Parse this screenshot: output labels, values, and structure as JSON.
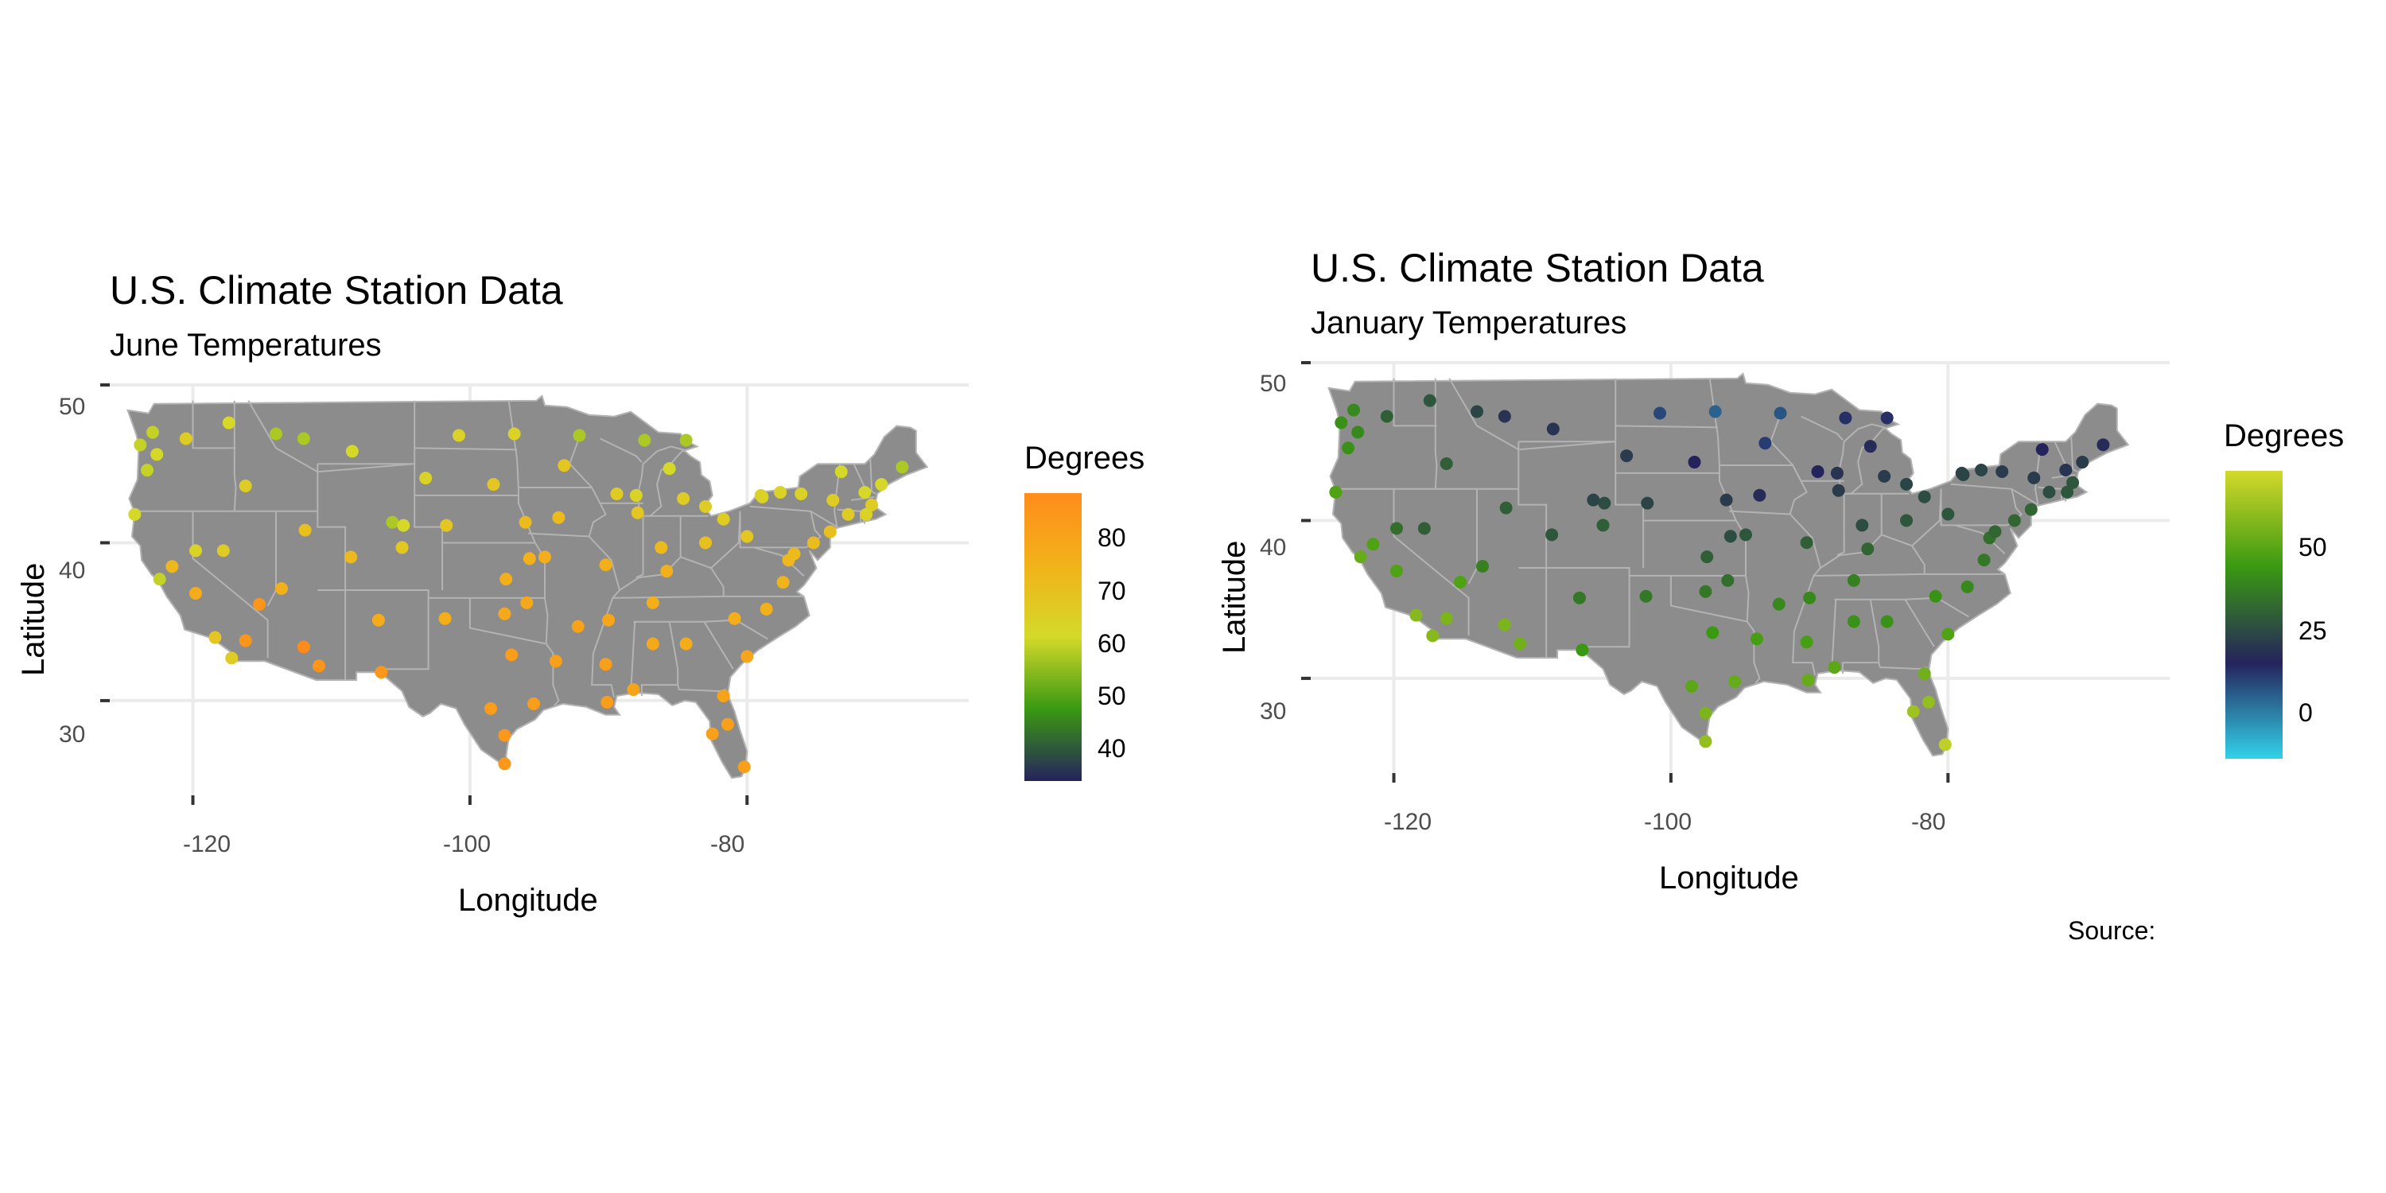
{
  "charts": [
    {
      "id": "june",
      "title": "U.S. Climate Station Data",
      "subtitle": "June Temperatures",
      "xlabel": "Longitude",
      "ylabel": "Latitude",
      "xticks": [
        "-120",
        "-100",
        "-80"
      ],
      "yticks": [
        "50",
        "40",
        "30"
      ],
      "legend": {
        "title": "Degrees",
        "labels": [
          "80",
          "70",
          "60",
          "50",
          "40"
        ]
      }
    },
    {
      "id": "january",
      "title": "U.S. Climate Station Data",
      "subtitle": "January Temperatures",
      "xlabel": "Longitude",
      "ylabel": "Latitude",
      "xticks": [
        "-120",
        "-100",
        "-80"
      ],
      "yticks": [
        "50",
        "40",
        "30"
      ],
      "legend": {
        "title": "Degrees",
        "labels": [
          "50",
          "25",
          "0"
        ]
      }
    }
  ],
  "caption": "Source:",
  "colors": {
    "land": "#8c8c8c",
    "state_borders": "#b3b3b3",
    "grid": "#ebebeb",
    "june_scale": [
      "#25235c",
      "#3a9912",
      "#d4d92a",
      "#f2b21a",
      "#ff8c1a"
    ],
    "january_scale": [
      "#31d2e8",
      "#25235c",
      "#3a9912",
      "#d4d92a"
    ]
  },
  "chart_data": [
    {
      "type": "scatter",
      "title": "U.S. Climate Station Data",
      "subtitle": "June Temperatures",
      "xlabel": "Longitude",
      "ylabel": "Latitude",
      "xlim": [
        -126,
        -64
      ],
      "ylim": [
        24,
        50
      ],
      "color_variable": "Degrees",
      "color_range": [
        35,
        88
      ],
      "grid": true,
      "legend": "right",
      "series": [
        {
          "values": [
            [
              -124.2,
              41.8,
              62
            ],
            [
              -123.8,
              46.2,
              60
            ],
            [
              -122.9,
              47.0,
              60
            ],
            [
              -122.6,
              45.6,
              62
            ],
            [
              -123.3,
              44.6,
              60
            ],
            [
              -122.4,
              37.7,
              60
            ],
            [
              -121.5,
              38.5,
              73
            ],
            [
              -118.4,
              34.0,
              68
            ],
            [
              -117.2,
              32.7,
              66
            ],
            [
              -116.2,
              33.8,
              85
            ],
            [
              -119.8,
              36.8,
              77
            ],
            [
              -115.2,
              36.1,
              85
            ],
            [
              -112.0,
              33.4,
              88
            ],
            [
              -110.9,
              32.2,
              85
            ],
            [
              -106.6,
              35.1,
              77
            ],
            [
              -106.4,
              31.8,
              84
            ],
            [
              -104.9,
              39.7,
              68
            ],
            [
              -105.6,
              41.3,
              58
            ],
            [
              -108.5,
              45.8,
              62
            ],
            [
              -112.0,
              46.6,
              58
            ],
            [
              -114.0,
              46.9,
              58
            ],
            [
              -116.2,
              43.6,
              66
            ],
            [
              -111.9,
              40.8,
              70
            ],
            [
              -117.4,
              47.6,
              62
            ],
            [
              -120.5,
              46.6,
              66
            ],
            [
              -117.8,
              39.5,
              66
            ],
            [
              -119.8,
              39.5,
              64
            ],
            [
              -113.6,
              37.1,
              75
            ],
            [
              -108.6,
              39.1,
              72
            ],
            [
              -104.8,
              41.1,
              62
            ],
            [
              -100.8,
              46.8,
              64
            ],
            [
              -96.8,
              46.9,
              64
            ],
            [
              -98.3,
              43.7,
              68
            ],
            [
              -103.2,
              44.1,
              64
            ],
            [
              -101.7,
              41.1,
              68
            ],
            [
              -96.0,
              41.3,
              72
            ],
            [
              -97.4,
              37.7,
              76
            ],
            [
              -95.7,
              39.0,
              75
            ],
            [
              -97.5,
              35.5,
              78
            ],
            [
              -95.9,
              36.2,
              78
            ],
            [
              -101.8,
              35.2,
              76
            ],
            [
              -97.0,
              32.9,
              82
            ],
            [
              -95.4,
              29.8,
              82
            ],
            [
              -98.5,
              29.5,
              82
            ],
            [
              -97.5,
              27.8,
              84
            ],
            [
              -97.5,
              26.0,
              84
            ],
            [
              -93.2,
              44.9,
              68
            ],
            [
              -92.1,
              46.8,
              58
            ],
            [
              -93.6,
              41.6,
              72
            ],
            [
              -90.2,
              38.6,
              76
            ],
            [
              -94.6,
              39.1,
              76
            ],
            [
              -92.2,
              34.7,
              80
            ],
            [
              -90.1,
              29.9,
              82
            ],
            [
              -93.8,
              32.5,
              81
            ],
            [
              -90.2,
              32.3,
              81
            ],
            [
              -88.0,
              43.0,
              64
            ],
            [
              -89.4,
              43.1,
              66
            ],
            [
              -87.9,
              41.9,
              68
            ],
            [
              -86.2,
              39.7,
              72
            ],
            [
              -85.8,
              38.2,
              75
            ],
            [
              -86.8,
              36.2,
              76
            ],
            [
              -90.0,
              35.1,
              79
            ],
            [
              -86.8,
              33.6,
              78
            ],
            [
              -88.2,
              30.7,
              80
            ],
            [
              -84.4,
              33.6,
              77
            ],
            [
              -83.0,
              40.0,
              70
            ],
            [
              -81.7,
              41.5,
              66
            ],
            [
              -83.0,
              42.3,
              66
            ],
            [
              -84.6,
              42.8,
              66
            ],
            [
              -85.6,
              44.7,
              62
            ],
            [
              -87.4,
              46.5,
              58
            ],
            [
              -84.4,
              46.5,
              58
            ],
            [
              -81.4,
              28.5,
              81
            ],
            [
              -80.2,
              25.8,
              81
            ],
            [
              -82.5,
              27.9,
              81
            ],
            [
              -81.7,
              30.3,
              80
            ],
            [
              -80.0,
              32.8,
              79
            ],
            [
              -80.9,
              35.2,
              76
            ],
            [
              -78.6,
              35.8,
              75
            ],
            [
              -77.4,
              37.5,
              74
            ],
            [
              -77.0,
              38.9,
              73
            ],
            [
              -76.6,
              39.3,
              72
            ],
            [
              -75.2,
              40.0,
              71
            ],
            [
              -74.0,
              40.7,
              70
            ],
            [
              -73.8,
              42.7,
              66
            ],
            [
              -71.0,
              42.4,
              66
            ],
            [
              -72.7,
              41.8,
              66
            ],
            [
              -71.4,
              41.8,
              64
            ],
            [
              -70.3,
              43.7,
              62
            ],
            [
              -68.8,
              44.8,
              58
            ],
            [
              -73.2,
              44.5,
              62
            ],
            [
              -71.5,
              43.2,
              62
            ],
            [
              -78.9,
              42.9,
              64
            ],
            [
              -80.0,
              40.4,
              68
            ],
            [
              -79.0,
              43.0,
              64
            ],
            [
              -76.1,
              43.1,
              64
            ],
            [
              -77.6,
              43.2,
              64
            ]
          ]
        }
      ]
    },
    {
      "type": "scatter",
      "title": "U.S. Climate Station Data",
      "subtitle": "January Temperatures",
      "xlabel": "Longitude",
      "ylabel": "Latitude",
      "xlim": [
        -126,
        -64
      ],
      "ylim": [
        24,
        50
      ],
      "color_variable": "Degrees",
      "color_range": [
        -12,
        72
      ],
      "grid": true,
      "legend": "right",
      "series": [
        {
          "values": [
            [
              -124.2,
              41.8,
              48
            ],
            [
              -123.8,
              46.2,
              42
            ],
            [
              -122.9,
              47.0,
              40
            ],
            [
              -122.6,
              45.6,
              40
            ],
            [
              -123.3,
              44.6,
              42
            ],
            [
              -122.4,
              37.7,
              52
            ],
            [
              -121.5,
              38.5,
              48
            ],
            [
              -118.4,
              34.0,
              58
            ],
            [
              -117.2,
              32.7,
              58
            ],
            [
              -116.2,
              33.8,
              56
            ],
            [
              -119.8,
              36.8,
              48
            ],
            [
              -115.2,
              36.1,
              48
            ],
            [
              -112.0,
              33.4,
              56
            ],
            [
              -110.9,
              32.2,
              54
            ],
            [
              -106.6,
              35.1,
              36
            ],
            [
              -106.4,
              31.8,
              44
            ],
            [
              -104.9,
              39.7,
              30
            ],
            [
              -105.6,
              41.3,
              24
            ],
            [
              -108.5,
              45.8,
              20
            ],
            [
              -112.0,
              46.6,
              20
            ],
            [
              -114.0,
              46.9,
              24
            ],
            [
              -116.2,
              43.6,
              30
            ],
            [
              -111.9,
              40.8,
              30
            ],
            [
              -117.4,
              47.6,
              28
            ],
            [
              -120.5,
              46.6,
              30
            ],
            [
              -117.8,
              39.5,
              30
            ],
            [
              -119.8,
              39.5,
              34
            ],
            [
              -113.6,
              37.1,
              38
            ],
            [
              -108.6,
              39.1,
              28
            ],
            [
              -104.8,
              41.1,
              26
            ],
            [
              -100.8,
              46.8,
              10
            ],
            [
              -96.8,
              46.9,
              6
            ],
            [
              -98.3,
              43.7,
              16
            ],
            [
              -103.2,
              44.1,
              22
            ],
            [
              -101.7,
              41.1,
              24
            ],
            [
              -96.0,
              41.3,
              22
            ],
            [
              -97.4,
              37.7,
              30
            ],
            [
              -95.7,
              39.0,
              26
            ],
            [
              -97.5,
              35.5,
              36
            ],
            [
              -95.9,
              36.2,
              34
            ],
            [
              -101.8,
              35.2,
              36
            ],
            [
              -97.0,
              32.9,
              44
            ],
            [
              -95.4,
              29.8,
              52
            ],
            [
              -98.5,
              29.5,
              50
            ],
            [
              -97.5,
              27.8,
              56
            ],
            [
              -97.5,
              26.0,
              60
            ],
            [
              -93.2,
              44.9,
              12
            ],
            [
              -92.1,
              46.8,
              8
            ],
            [
              -93.6,
              41.6,
              18
            ],
            [
              -90.2,
              38.6,
              30
            ],
            [
              -94.6,
              39.1,
              28
            ],
            [
              -92.2,
              34.7,
              40
            ],
            [
              -90.1,
              29.9,
              52
            ],
            [
              -93.8,
              32.5,
              46
            ],
            [
              -90.2,
              32.3,
              46
            ],
            [
              -88.0,
              43.0,
              20
            ],
            [
              -89.4,
              43.1,
              16
            ],
            [
              -87.9,
              41.9,
              22
            ],
            [
              -86.2,
              39.7,
              26
            ],
            [
              -85.8,
              38.2,
              32
            ],
            [
              -86.8,
              36.2,
              38
            ],
            [
              -90.0,
              35.1,
              40
            ],
            [
              -86.8,
              33.6,
              42
            ],
            [
              -88.2,
              30.7,
              50
            ],
            [
              -84.4,
              33.6,
              42
            ],
            [
              -83.0,
              40.0,
              28
            ],
            [
              -81.7,
              41.5,
              26
            ],
            [
              -83.0,
              42.3,
              24
            ],
            [
              -84.6,
              42.8,
              22
            ],
            [
              -85.6,
              44.7,
              18
            ],
            [
              -87.4,
              46.5,
              14
            ],
            [
              -84.4,
              46.5,
              14
            ],
            [
              -81.4,
              28.5,
              60
            ],
            [
              -80.2,
              25.8,
              68
            ],
            [
              -82.5,
              27.9,
              62
            ],
            [
              -81.7,
              30.3,
              54
            ],
            [
              -80.0,
              32.8,
              48
            ],
            [
              -80.9,
              35.2,
              42
            ],
            [
              -78.6,
              35.8,
              40
            ],
            [
              -77.4,
              37.5,
              36
            ],
            [
              -77.0,
              38.9,
              34
            ],
            [
              -76.6,
              39.3,
              32
            ],
            [
              -75.2,
              40.0,
              32
            ],
            [
              -74.0,
              40.7,
              32
            ],
            [
              -73.8,
              42.7,
              22
            ],
            [
              -71.0,
              42.4,
              28
            ],
            [
              -72.7,
              41.8,
              26
            ],
            [
              -71.4,
              41.8,
              28
            ],
            [
              -70.3,
              43.7,
              22
            ],
            [
              -68.8,
              44.8,
              18
            ],
            [
              -73.2,
              44.5,
              16
            ],
            [
              -71.5,
              43.2,
              20
            ],
            [
              -78.9,
              42.9,
              24
            ],
            [
              -80.0,
              40.4,
              28
            ],
            [
              -79.0,
              43.0,
              24
            ],
            [
              -76.1,
              43.1,
              22
            ],
            [
              -77.6,
              43.2,
              24
            ]
          ]
        }
      ]
    }
  ]
}
